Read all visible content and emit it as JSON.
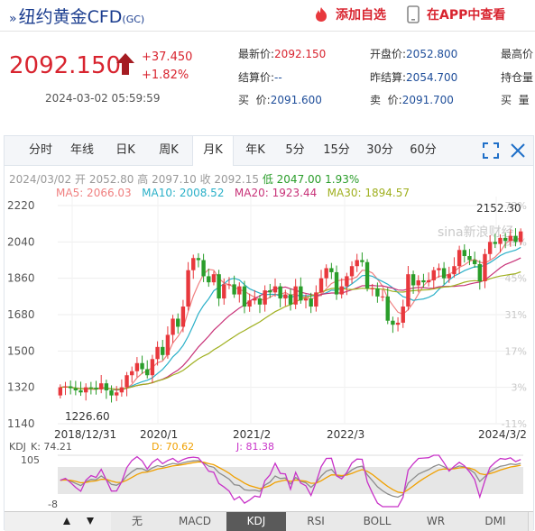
{
  "header": {
    "title": "纽约黄金CFD",
    "title_code": "(GC)",
    "add_fav_label": "添加自选",
    "open_app_label": "在APP中查看"
  },
  "quote": {
    "price": "2092.150",
    "change": "+37.450",
    "change_pct": "+1.82%",
    "timestamp": "2024-03-02 05:59:59",
    "col1": [
      {
        "label": "最新价:",
        "value": "2092.150",
        "tone": "red"
      },
      {
        "label": "结算价:",
        "value": "--",
        "tone": "blue"
      },
      {
        "label": "买  价:",
        "value": "2091.600",
        "tone": "blue"
      }
    ],
    "col2": [
      {
        "label": "开盘价:",
        "value": "2052.800",
        "tone": "blue"
      },
      {
        "label": "昨结算:",
        "value": "2054.700",
        "tone": "blue"
      },
      {
        "label": "卖  价:",
        "value": "2091.700",
        "tone": "blue"
      }
    ],
    "col3": [
      {
        "label": "最高价",
        "value": ""
      },
      {
        "label": "持仓量",
        "value": ""
      },
      {
        "label": "买  量",
        "value": ""
      }
    ]
  },
  "tabs": [
    "分时",
    "年线",
    "日K",
    "周K",
    "月K",
    "年K",
    "5分",
    "15分",
    "30分",
    "60分"
  ],
  "active_tab": "月K",
  "bar_info": {
    "date": "2024/03/02",
    "open": "开 2052.80",
    "high": "高 2097.10",
    "close": "收 2092.15",
    "low": "低 2047.00",
    "pct": "1.93%"
  },
  "ma": {
    "ma5": "MA5: 2066.03",
    "ma10": "MA10: 2008.52",
    "ma20": "MA20: 1923.44",
    "ma30": "MA30: 1894.57"
  },
  "watermark": "sina新浪财经",
  "colors": {
    "up": "#e8383d",
    "down": "#2a9d2a",
    "ma5": "#f08080",
    "ma10": "#2ab0c8",
    "ma20": "#c83278",
    "ma30": "#a0b020",
    "k": "#8c8c8c",
    "d": "#f0a000",
    "j": "#c832c8"
  },
  "chart_data": {
    "type": "candlestick",
    "y_ticks": [
      "2220",
      "2040",
      "1860",
      "1680",
      "1500",
      "1320",
      "1140"
    ],
    "pct_ticks": [
      "73%",
      "59%",
      "45%",
      "31%",
      "17%",
      "3%",
      "-11%"
    ],
    "x_ticks": [
      "2018/12/31",
      "2020/1",
      "2021/2",
      "2022/3",
      "2024/3/2"
    ],
    "ylim": [
      1140,
      2220
    ],
    "max_label": "2152.30",
    "min_label": "1226.60",
    "closes": [
      1320,
      1325,
      1316,
      1305,
      1295,
      1320,
      1318,
      1310,
      1340,
      1305,
      1280,
      1295,
      1320,
      1380,
      1400,
      1440,
      1410,
      1380,
      1460,
      1520,
      1480,
      1580,
      1660,
      1620,
      1720,
      1900,
      1960,
      1950,
      1870,
      1840,
      1880,
      1760,
      1830,
      1830,
      1780,
      1820,
      1720,
      1750,
      1760,
      1730,
      1800,
      1790,
      1820,
      1760,
      1780,
      1730,
      1820,
      1750,
      1760,
      1720,
      1790,
      1860,
      1910,
      1890,
      1780,
      1820,
      1870,
      1920,
      1950,
      1940,
      1810,
      1810,
      1770,
      1770,
      1650,
      1630,
      1640,
      1720,
      1880,
      1825,
      1850,
      1840,
      1850,
      1900,
      1910,
      1860,
      1880,
      1920,
      2000,
      1970,
      1950,
      1930,
      1845,
      1980,
      2040,
      2030,
      2060,
      2045,
      2070,
      2040,
      2092
    ],
    "kdj_labels": {
      "k": "K: 74.21",
      "d": "D: 70.62",
      "j": "J: 81.38"
    },
    "kdj_ticks": [
      "105",
      "-8"
    ]
  },
  "bottom_tabs": [
    "无",
    "MACD",
    "KDJ",
    "RSI",
    "BOLL",
    "WR",
    "DMI"
  ],
  "active_bottom_tab": "KDJ"
}
